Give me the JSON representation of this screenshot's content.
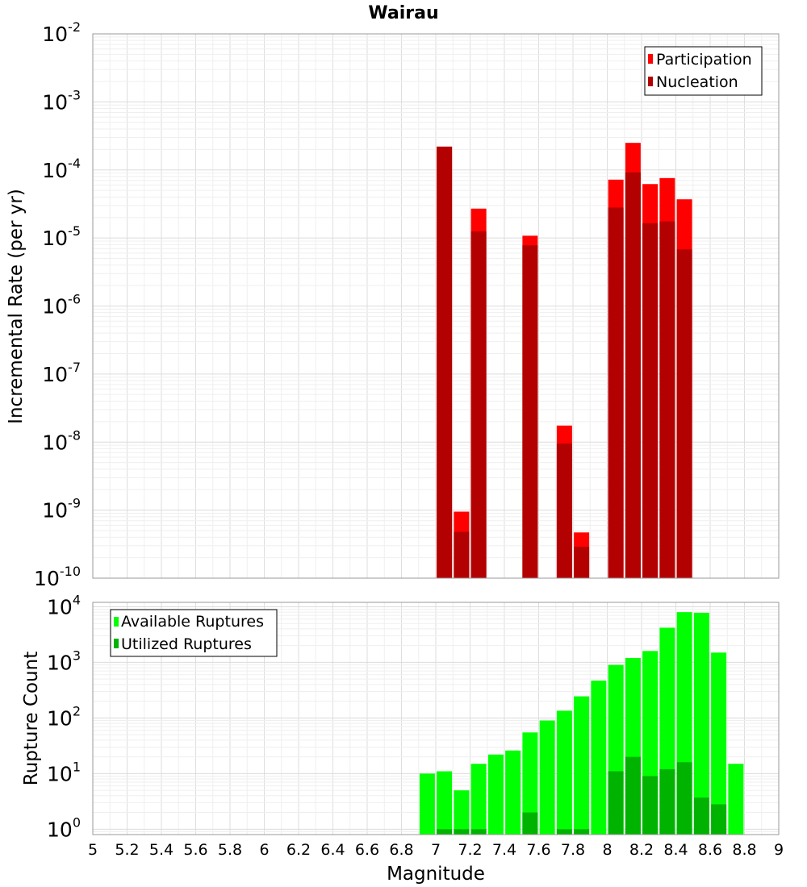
{
  "chart_data": [
    {
      "type": "bar",
      "title": "Wairau",
      "ylabel": "Incremental Rate (per yr)",
      "yscale": "log",
      "ylim": [
        1e-10,
        0.01
      ],
      "xlim": [
        5,
        9
      ],
      "ytick_exponents": [
        "-2",
        "-3",
        "-4",
        "-5",
        "-6",
        "-7",
        "-8",
        "-9",
        "-10"
      ],
      "ytick_base": "10",
      "grid": true,
      "legend_position": "top-right",
      "legend": [
        "Participation",
        "Nucleation"
      ],
      "colors": {
        "Participation": "#ff0000",
        "Nucleation": "#b30000"
      },
      "series": [
        {
          "name": "Participation",
          "x": [
            7.05,
            7.15,
            7.25,
            7.55,
            7.75,
            7.85,
            8.05,
            8.15,
            8.25,
            8.35,
            8.45
          ],
          "values": [
            0.00022,
            9.5e-10,
            2.7e-05,
            1.08e-05,
            1.75e-08,
            4.7e-10,
            7.2e-05,
            0.00025,
            6.2e-05,
            7.6e-05,
            3.7e-05
          ]
        },
        {
          "name": "Nucleation",
          "x": [
            7.05,
            7.15,
            7.25,
            7.55,
            7.75,
            7.85,
            8.05,
            8.15,
            8.25,
            8.35,
            8.45
          ],
          "values": [
            0.00022,
            4.8e-10,
            1.25e-05,
            7.8e-06,
            9.5e-09,
            2.9e-10,
            2.8e-05,
            9.2e-05,
            1.65e-05,
            1.75e-05,
            6.8e-06
          ]
        }
      ]
    },
    {
      "type": "bar",
      "xlabel": "Magnitude",
      "ylabel": "Rupture Count",
      "yscale": "log",
      "ylim": [
        0.8,
        12000
      ],
      "xlim": [
        5,
        9
      ],
      "xticks": [
        "5",
        "5.2",
        "5.4",
        "5.6",
        "5.8",
        "6",
        "6.2",
        "6.4",
        "6.6",
        "6.8",
        "7",
        "7.2",
        "7.4",
        "7.6",
        "7.8",
        "8",
        "8.2",
        "8.4",
        "8.6",
        "8.8",
        "9"
      ],
      "ytick_exponents": [
        "4",
        "3",
        "2",
        "1",
        "0"
      ],
      "ytick_base": "10",
      "grid": true,
      "legend_position": "top-left",
      "legend": [
        "Available Ruptures",
        "Utilized Ruptures"
      ],
      "colors": {
        "Available Ruptures": "#00ff00",
        "Utilized Ruptures": "#00b300"
      },
      "series": [
        {
          "name": "Available Ruptures",
          "x": [
            6.95,
            7.05,
            7.15,
            7.25,
            7.35,
            7.45,
            7.55,
            7.65,
            7.75,
            7.85,
            7.95,
            8.05,
            8.15,
            8.25,
            8.35,
            8.45,
            8.55,
            8.65,
            8.75
          ],
          "values": [
            10,
            11,
            5,
            15,
            22,
            26,
            55,
            90,
            135,
            245,
            470,
            900,
            1200,
            1600,
            4200,
            8000,
            7800,
            1500,
            15
          ]
        },
        {
          "name": "Utilized Ruptures",
          "x": [
            7.05,
            7.15,
            7.25,
            7.55,
            7.75,
            7.85,
            8.05,
            8.15,
            8.25,
            8.35,
            8.45,
            8.55,
            8.65
          ],
          "values": [
            1,
            1,
            1,
            2,
            1,
            1,
            11,
            20,
            9,
            12,
            16,
            3.7,
            2.8
          ]
        }
      ]
    }
  ]
}
